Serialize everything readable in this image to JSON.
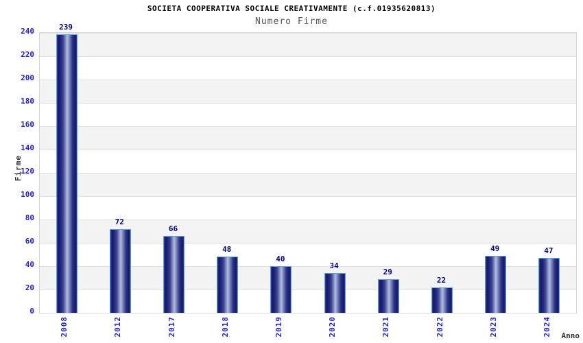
{
  "header": {
    "title": "SOCIETA COOPERATIVA SOCIALE CREATIVAMENTE (c.f.01935620813)",
    "subtitle": "Numero Firme"
  },
  "chart_data": {
    "type": "bar",
    "title": "SOCIETA COOPERATIVA SOCIALE CREATIVAMENTE (c.f.01935620813)",
    "subtitle": "Numero Firme",
    "xlabel": "Anno",
    "ylabel": "Firme",
    "categories": [
      "2008",
      "2012",
      "2017",
      "2018",
      "2019",
      "2020",
      "2021",
      "2022",
      "2023",
      "2024"
    ],
    "values": [
      239,
      72,
      66,
      48,
      40,
      34,
      29,
      22,
      49,
      47
    ],
    "ylim": [
      0,
      240
    ],
    "ytick_step": 20,
    "yticks": [
      0,
      20,
      40,
      60,
      80,
      100,
      120,
      140,
      160,
      180,
      200,
      220,
      240
    ],
    "grid": "horizontal-bands-every-20",
    "legend": "none",
    "colors": {
      "title": "#000000",
      "subtitle": "#555555",
      "axis_title": "#333333",
      "tick_label": "#2222cc",
      "value_label": "#00007d",
      "bar_dark": "#14186a",
      "bar_light": "#b2bbdf",
      "bar_border": "#55a2e8",
      "band_gray": "#f3f3f3",
      "gridline": "#e1e1e1",
      "plot_border": "#d4d4d4"
    }
  }
}
